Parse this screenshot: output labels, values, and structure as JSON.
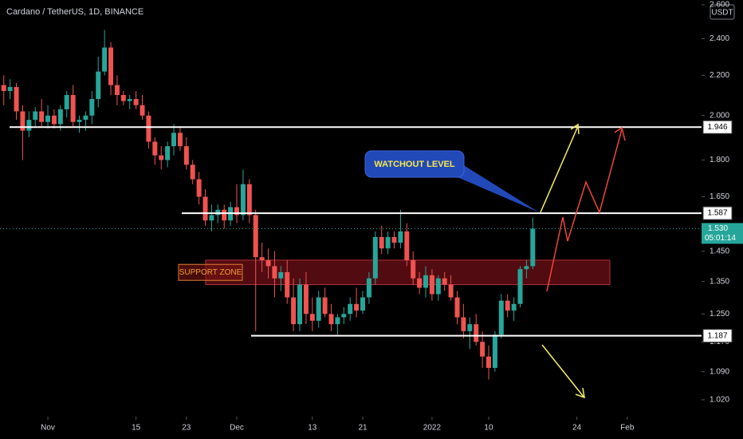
{
  "chart_data": {
    "type": "candlestick",
    "title": "Cardano / TetherUS, 1D, BINANCE",
    "currency": "USDT",
    "log_scale": true,
    "grid": false,
    "up_color": "#26a69a",
    "down_color": "#ef5350",
    "xlim": [
      -7.6,
      103.8
    ],
    "xticks": [
      {
        "value": 0,
        "label": "Nov"
      },
      {
        "value": 14,
        "label": "15"
      },
      {
        "value": 22,
        "label": "23"
      },
      {
        "value": 30,
        "label": "Dec"
      },
      {
        "value": 42,
        "label": "13"
      },
      {
        "value": 50,
        "label": "21"
      },
      {
        "value": 61,
        "label": "2022"
      },
      {
        "value": 70,
        "label": "10"
      },
      {
        "value": 84,
        "label": "24"
      },
      {
        "value": 92,
        "label": "Feb"
      }
    ],
    "ylim": [
      0.98,
      2.63
    ],
    "yticks": [
      {
        "value": 2.6,
        "label": "2.600"
      },
      {
        "value": 2.4,
        "label": "2.400"
      },
      {
        "value": 2.2,
        "label": "2.200"
      },
      {
        "value": 2.0,
        "label": "2.000"
      },
      {
        "value": 1.8,
        "label": "1.800"
      },
      {
        "value": 1.65,
        "label": "1.650"
      },
      {
        "value": 1.45,
        "label": "1.450"
      },
      {
        "value": 1.35,
        "label": "1.350"
      },
      {
        "value": 1.25,
        "label": "1.250"
      },
      {
        "value": 1.17,
        "label": "1.170"
      },
      {
        "value": 1.09,
        "label": "1.090"
      },
      {
        "value": 1.02,
        "label": "1.020"
      }
    ],
    "x": [
      -7,
      -6,
      -5,
      -4,
      -3,
      -2,
      -1,
      0,
      1,
      2,
      3,
      4,
      5,
      6,
      7,
      8,
      9,
      10,
      11,
      12,
      13,
      14,
      15,
      16,
      17,
      18,
      19,
      20,
      21,
      22,
      23,
      24,
      25,
      26,
      27,
      28,
      29,
      30,
      31,
      32,
      33,
      34,
      35,
      36,
      37,
      38,
      39,
      40,
      41,
      42,
      43,
      44,
      45,
      46,
      47,
      48,
      49,
      50,
      51,
      52,
      53,
      54,
      55,
      56,
      57,
      58,
      59,
      60,
      61,
      62,
      63,
      64,
      65,
      66,
      67,
      68,
      69,
      70,
      71,
      72,
      73,
      74,
      75,
      76,
      77
    ],
    "open": [
      2.15,
      2.12,
      2.14,
      2.02,
      1.93,
      1.98,
      2.02,
      1.97,
      2.0,
      1.96,
      2.03,
      2.1,
      1.97,
      1.98,
      2.0,
      2.08,
      2.22,
      2.35,
      2.15,
      2.1,
      2.07,
      2.08,
      2.05,
      2.0,
      1.88,
      1.82,
      1.8,
      1.86,
      1.92,
      1.86,
      1.78,
      1.72,
      1.65,
      1.56,
      1.58,
      1.6,
      1.56,
      1.61,
      1.58,
      1.7,
      1.58,
      1.43,
      1.42,
      1.4,
      1.36,
      1.38,
      1.3,
      1.22,
      1.34,
      1.25,
      1.23,
      1.3,
      1.25,
      1.22,
      1.24,
      1.25,
      1.28,
      1.26,
      1.3,
      1.36,
      1.5,
      1.46,
      1.5,
      1.48,
      1.52,
      1.42,
      1.36,
      1.33,
      1.37,
      1.31,
      1.36,
      1.34,
      1.3,
      1.24,
      1.2,
      1.22,
      1.17,
      1.13,
      1.1,
      1.19,
      1.29,
      1.26,
      1.28,
      1.39,
      1.4
    ],
    "high": [
      2.2,
      2.18,
      2.16,
      2.05,
      2.02,
      2.04,
      2.08,
      2.05,
      2.03,
      2.05,
      2.12,
      2.15,
      2.0,
      2.02,
      2.12,
      2.3,
      2.45,
      2.38,
      2.2,
      2.12,
      2.1,
      2.12,
      2.1,
      2.02,
      1.9,
      1.86,
      1.88,
      1.96,
      1.95,
      1.9,
      1.8,
      1.75,
      1.68,
      1.62,
      1.62,
      1.62,
      1.63,
      1.7,
      1.76,
      1.72,
      1.6,
      1.48,
      1.46,
      1.45,
      1.4,
      1.42,
      1.36,
      1.36,
      1.38,
      1.3,
      1.32,
      1.33,
      1.28,
      1.25,
      1.27,
      1.3,
      1.33,
      1.32,
      1.38,
      1.52,
      1.54,
      1.52,
      1.52,
      1.6,
      1.55,
      1.45,
      1.38,
      1.4,
      1.39,
      1.37,
      1.38,
      1.37,
      1.32,
      1.28,
      1.24,
      1.25,
      1.2,
      1.16,
      1.2,
      1.31,
      1.31,
      1.3,
      1.4,
      1.42,
      1.57
    ],
    "low": [
      2.05,
      2.08,
      1.98,
      1.8,
      1.9,
      1.95,
      1.95,
      1.94,
      1.94,
      1.93,
      1.99,
      1.95,
      1.92,
      1.93,
      1.96,
      2.04,
      2.2,
      2.1,
      2.05,
      2.05,
      2.03,
      2.03,
      1.98,
      1.85,
      1.78,
      1.76,
      1.77,
      1.82,
      1.84,
      1.76,
      1.7,
      1.62,
      1.54,
      1.52,
      1.55,
      1.53,
      1.54,
      1.55,
      1.56,
      1.55,
      1.2,
      1.38,
      1.36,
      1.3,
      1.32,
      1.28,
      1.2,
      1.2,
      1.22,
      1.2,
      1.21,
      1.24,
      1.2,
      1.19,
      1.22,
      1.23,
      1.24,
      1.25,
      1.28,
      1.34,
      1.44,
      1.44,
      1.46,
      1.46,
      1.4,
      1.34,
      1.31,
      1.3,
      1.29,
      1.29,
      1.32,
      1.29,
      1.22,
      1.18,
      1.15,
      1.16,
      1.1,
      1.07,
      1.09,
      1.18,
      1.24,
      1.23,
      1.27,
      1.36,
      1.39
    ],
    "close": [
      2.12,
      2.14,
      2.02,
      1.93,
      1.98,
      2.02,
      1.97,
      2.0,
      1.96,
      2.03,
      2.1,
      1.97,
      1.98,
      2.0,
      2.08,
      2.22,
      2.35,
      2.15,
      2.1,
      2.07,
      2.08,
      2.05,
      2.0,
      1.88,
      1.82,
      1.8,
      1.86,
      1.92,
      1.86,
      1.78,
      1.72,
      1.65,
      1.56,
      1.58,
      1.6,
      1.56,
      1.61,
      1.58,
      1.7,
      1.58,
      1.43,
      1.42,
      1.4,
      1.36,
      1.38,
      1.3,
      1.22,
      1.34,
      1.25,
      1.23,
      1.3,
      1.25,
      1.22,
      1.24,
      1.25,
      1.28,
      1.26,
      1.3,
      1.36,
      1.5,
      1.46,
      1.5,
      1.48,
      1.52,
      1.42,
      1.36,
      1.33,
      1.37,
      1.31,
      1.36,
      1.34,
      1.3,
      1.24,
      1.2,
      1.22,
      1.17,
      1.13,
      1.1,
      1.19,
      1.29,
      1.26,
      1.28,
      1.39,
      1.4,
      1.53
    ],
    "price_lines": [
      1.946,
      1.587,
      1.187
    ],
    "current_price": {
      "value": 1.53,
      "label": "1.530"
    },
    "countdown": "05:01:14",
    "support_zone": {
      "label": "SUPPORT ZONE",
      "from": 1.34,
      "to": 1.42
    },
    "callout": "WATCHOUT LEVEL"
  }
}
